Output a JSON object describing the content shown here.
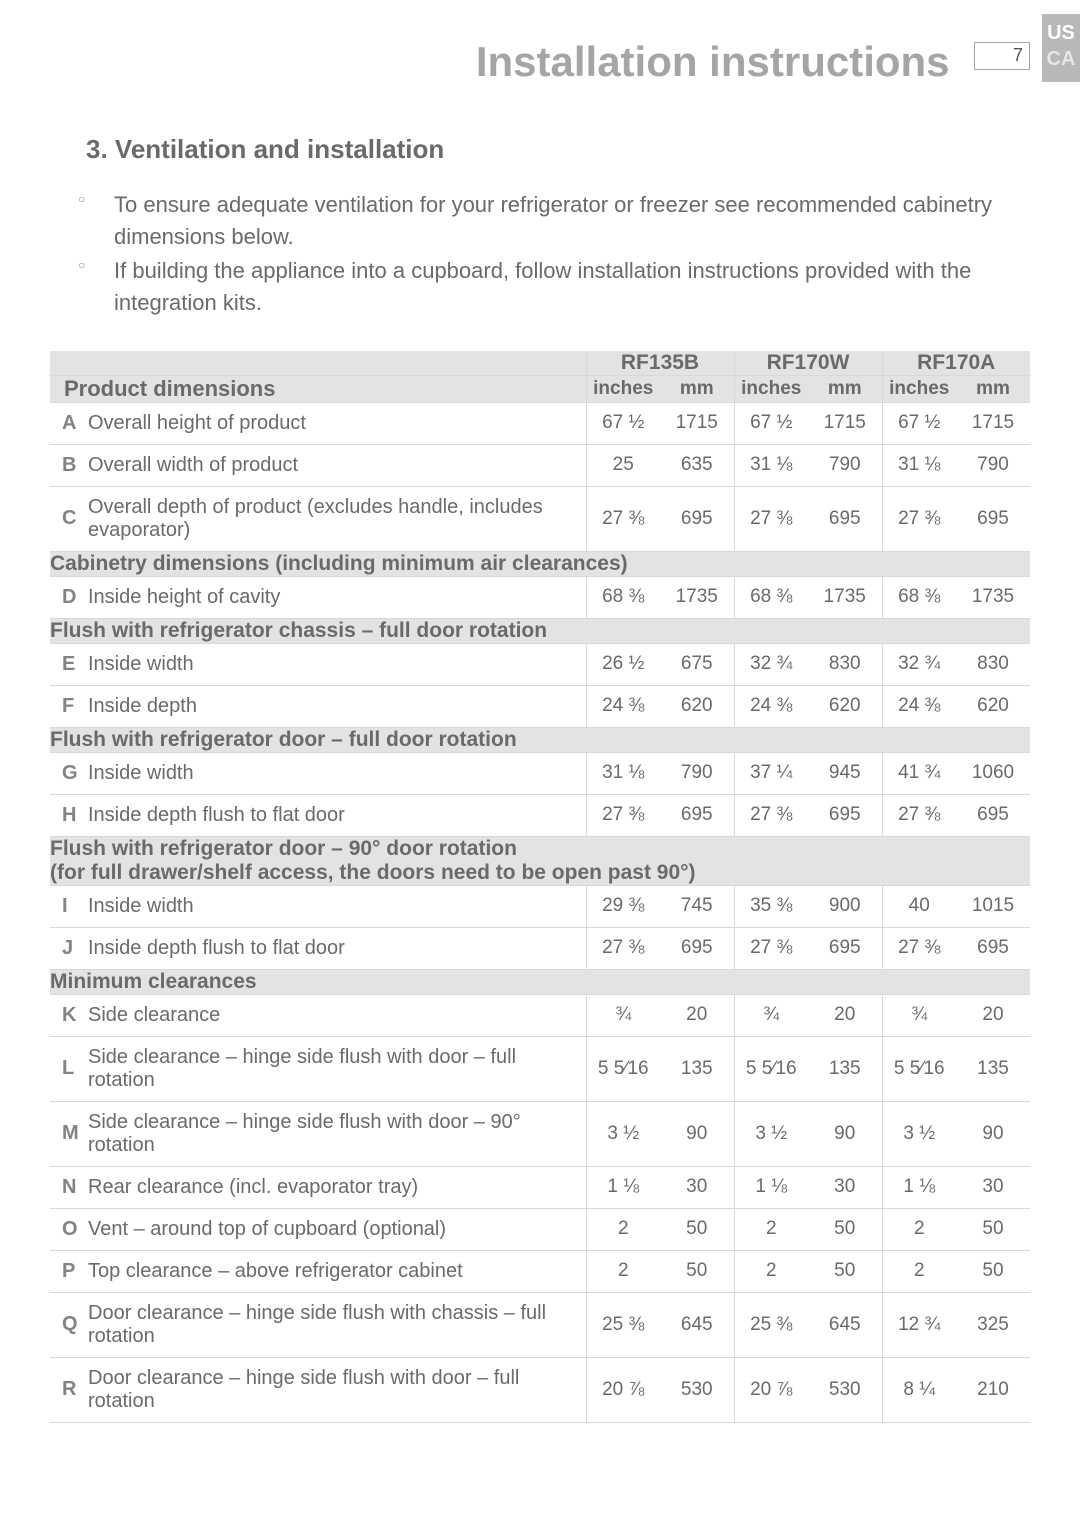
{
  "header": {
    "title": "Installation instructions",
    "page_number": "7",
    "region1": "US",
    "region2": "CA"
  },
  "section": {
    "title": "3. Ventilation and installation",
    "bullets": [
      "To ensure adequate ventilation for your refrigerator or freezer see recommended cabinetry dimensions below.",
      "If building the appliance into a cupboard, follow installation instructions provided with the integration kits."
    ]
  },
  "table": {
    "models": [
      "RF135B",
      "RF170W",
      "RF170A"
    ],
    "unit_labels": [
      "inches",
      "mm",
      "inches",
      "mm",
      "inches",
      "mm"
    ],
    "dim_label": "Product dimensions",
    "groups": [
      {
        "header": null,
        "rows": [
          {
            "l": "A",
            "d": "Overall height of product",
            "v": [
              "67 ½",
              "1715",
              "67 ½",
              "1715",
              "67 ½",
              "1715"
            ]
          },
          {
            "l": "B",
            "d": "Overall width of product",
            "v": [
              "25",
              "635",
              "31 ⅛",
              "790",
              "31 ⅛",
              "790"
            ]
          },
          {
            "l": "C",
            "d": "Overall depth of product (excludes handle, includes evaporator)",
            "v": [
              "27 ⅜",
              "695",
              "27 ⅜",
              "695",
              "27 ⅜",
              "695"
            ]
          }
        ]
      },
      {
        "header": "Cabinetry dimensions (including minimum air clearances)",
        "rows": [
          {
            "l": "D",
            "d": "Inside height of cavity",
            "v": [
              "68 ⅜",
              "1735",
              "68 ⅜",
              "1735",
              "68 ⅜",
              "1735"
            ]
          }
        ]
      },
      {
        "header": "Flush with refrigerator chassis – full door rotation",
        "rows": [
          {
            "l": "E",
            "d": "Inside width",
            "v": [
              "26 ½",
              "675",
              "32 ¾",
              "830",
              "32 ¾",
              "830"
            ]
          },
          {
            "l": "F",
            "d": "Inside depth",
            "v": [
              "24 ⅜",
              "620",
              "24 ⅜",
              "620",
              "24 ⅜",
              "620"
            ]
          }
        ]
      },
      {
        "header": "Flush with refrigerator door – full door rotation",
        "rows": [
          {
            "l": "G",
            "d": "Inside width",
            "v": [
              "31 ⅛",
              "790",
              "37 ¼",
              "945",
              "41 ¾",
              "1060"
            ]
          },
          {
            "l": "H",
            "d": "Inside depth flush to flat door",
            "v": [
              "27 ⅜",
              "695",
              "27 ⅜",
              "695",
              "27 ⅜",
              "695"
            ]
          }
        ]
      },
      {
        "header": "Flush with refrigerator door – 90° door rotation\n(for full drawer/shelf access, the doors need to be open past 90°)",
        "rows": [
          {
            "l": "I",
            "d": "Inside width",
            "v": [
              "29 ⅜",
              "745",
              "35 ⅜",
              "900",
              "40",
              "1015"
            ]
          },
          {
            "l": "J",
            "d": "Inside depth flush to flat door",
            "v": [
              "27 ⅜",
              "695",
              "27 ⅜",
              "695",
              "27 ⅜",
              "695"
            ]
          }
        ]
      },
      {
        "header": "Minimum clearances",
        "rows": [
          {
            "l": "K",
            "d": "Side clearance",
            "v": [
              "¾",
              "20",
              "¾",
              "20",
              "¾",
              "20"
            ]
          },
          {
            "l": "L",
            "d": "Side clearance – hinge side flush with door – full rotation",
            "v": [
              "5 5⁄16",
              "135",
              "5 5⁄16",
              "135",
              "5 5⁄16",
              "135"
            ]
          },
          {
            "l": "M",
            "d": "Side clearance – hinge side flush with door – 90° rotation",
            "v": [
              "3 ½",
              "90",
              "3 ½",
              "90",
              "3 ½",
              "90"
            ]
          },
          {
            "l": "N",
            "d": "Rear clearance (incl. evaporator tray)",
            "v": [
              "1 ⅛",
              "30",
              "1 ⅛",
              "30",
              "1 ⅛",
              "30"
            ]
          },
          {
            "l": "O",
            "d": "Vent – around top of cupboard (optional)",
            "v": [
              "2",
              "50",
              "2",
              "50",
              "2",
              "50"
            ]
          },
          {
            "l": "P",
            "d": "Top clearance – above refrigerator cabinet",
            "v": [
              "2",
              "50",
              "2",
              "50",
              "2",
              "50"
            ]
          },
          {
            "l": "Q",
            "d": "Door clearance – hinge side flush with chassis – full rotation",
            "v": [
              "25 ⅜",
              "645",
              "25 ⅜",
              "645",
              "12 ¾",
              "325"
            ]
          },
          {
            "l": "R",
            "d": "Door clearance – hinge side flush with door – full rotation",
            "v": [
              "20 ⅞",
              "530",
              "20 ⅞",
              "530",
              "8 ¼",
              "210"
            ]
          }
        ]
      }
    ]
  }
}
